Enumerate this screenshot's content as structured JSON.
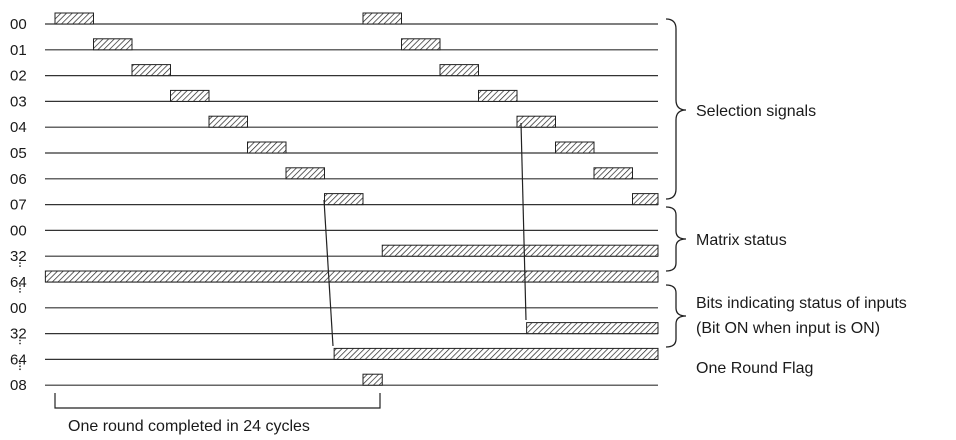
{
  "rows": [
    {
      "label": "00",
      "pulses": [
        [
          0,
          1
        ],
        [
          8,
          9
        ]
      ]
    },
    {
      "label": "01",
      "pulses": [
        [
          1,
          2
        ],
        [
          9,
          10
        ]
      ]
    },
    {
      "label": "02",
      "pulses": [
        [
          2,
          3
        ],
        [
          10,
          11
        ]
      ]
    },
    {
      "label": "03",
      "pulses": [
        [
          3,
          4
        ],
        [
          11,
          12
        ]
      ]
    },
    {
      "label": "04",
      "pulses": [
        [
          4,
          5
        ],
        [
          12,
          13
        ]
      ]
    },
    {
      "label": "05",
      "pulses": [
        [
          5,
          6
        ],
        [
          13,
          14
        ]
      ]
    },
    {
      "label": "06",
      "pulses": [
        [
          6,
          7
        ],
        [
          14,
          15
        ]
      ]
    },
    {
      "label": "07",
      "pulses": [
        [
          7,
          8
        ],
        [
          15,
          16
        ]
      ]
    },
    {
      "label": "00",
      "pulses": []
    },
    {
      "label": "32",
      "pulses": [
        [
          8.5,
          16
        ]
      ]
    },
    {
      "label": "64",
      "pulses": [
        [
          -0.25,
          16
        ]
      ]
    },
    {
      "label": "00",
      "pulses": []
    },
    {
      "label": "32",
      "pulses": [
        [
          12.25,
          16
        ]
      ]
    },
    {
      "label": "64",
      "pulses": [
        [
          7.25,
          16
        ]
      ]
    },
    {
      "label": "08",
      "pulses": [
        [
          8,
          8.5
        ]
      ]
    }
  ],
  "groups": [
    {
      "label": "Selection signals",
      "lines": []
    },
    {
      "label": "Matrix status",
      "lines": []
    },
    {
      "label": "Bits indicating status of inputs",
      "lines": [
        "Bits indicating status of inputs",
        "(Bit ON when input is ON)"
      ]
    },
    {
      "label": "One Round Flag",
      "lines": []
    }
  ],
  "bottom_caption": "One round completed in 24 cycles",
  "colors": {
    "line": "#333333",
    "hatch": "#222222",
    "background": "#ffffff",
    "text": "#1a1a1a"
  }
}
